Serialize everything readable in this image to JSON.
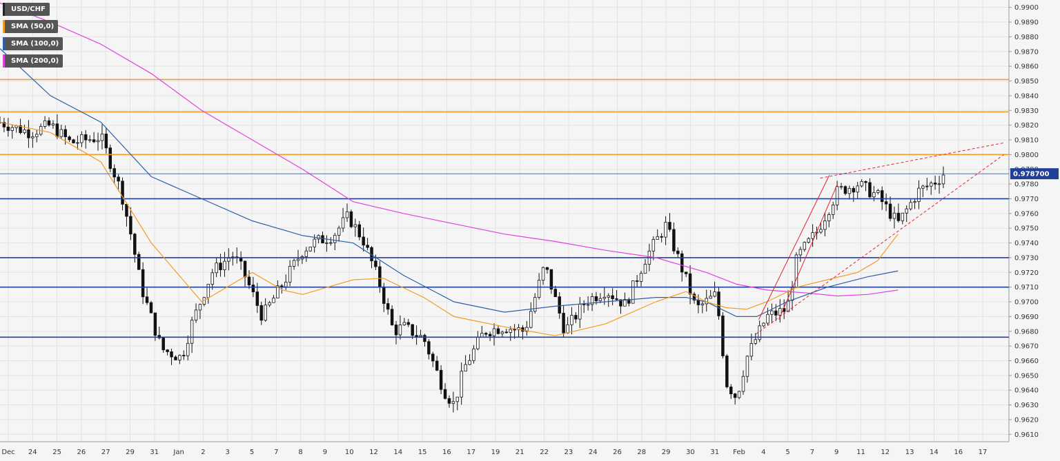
{
  "chart_data": {
    "type": "candlestick",
    "symbol": "USD/CHF",
    "legend": [
      {
        "label": "USD/CHF",
        "color": "#222222"
      },
      {
        "label": "SMA (50,0)",
        "color": "#f59a23"
      },
      {
        "label": "SMA (100,0)",
        "color": "#2c5fa8"
      },
      {
        "label": "SMA (200,0)",
        "color": "#e040e0"
      }
    ],
    "current_price_label": "0.978700",
    "current_price": 0.9787,
    "y_axis": {
      "min": 0.9605,
      "max": 0.9905,
      "ticks": [
        "0.9900",
        "0.9890",
        "0.9880",
        "0.9870",
        "0.9860",
        "0.9850",
        "0.9840",
        "0.9830",
        "0.9820",
        "0.9810",
        "0.9800",
        "0.9790",
        "0.9780",
        "0.9770",
        "0.9760",
        "0.9750",
        "0.9740",
        "0.9730",
        "0.9720",
        "0.9710",
        "0.9700",
        "0.9690",
        "0.9680",
        "0.9670",
        "0.9660",
        "0.9650",
        "0.9640",
        "0.9630",
        "0.9620",
        "0.9610"
      ]
    },
    "x_axis": {
      "labels": [
        "Dec",
        "24",
        "25",
        "26",
        "27",
        "29",
        "31",
        "Jan",
        "2",
        "3",
        "5",
        "7",
        "8",
        "9",
        "10",
        "12",
        "14",
        "15",
        "16",
        "17",
        "19",
        "21",
        "22",
        "23",
        "24",
        "26",
        "28",
        "29",
        "30",
        "31",
        "Feb",
        "4",
        "5",
        "7",
        "9",
        "11",
        "12",
        "13",
        "14",
        "16",
        "17"
      ]
    },
    "horizontal_levels": [
      {
        "price": 0.9851,
        "color": "#f59a23"
      },
      {
        "price": 0.9829,
        "color": "#f59a23"
      },
      {
        "price": 0.98,
        "color": "#f59a23"
      },
      {
        "price": 0.977,
        "color": "#1f3f99"
      },
      {
        "price": 0.973,
        "color": "#1f3f99"
      },
      {
        "price": 0.971,
        "color": "#1f3f99"
      },
      {
        "price": 0.9676,
        "color": "#1f3f99"
      }
    ],
    "sma_50": [
      [
        0,
        0.9822
      ],
      [
        0.05,
        0.9815
      ],
      [
        0.1,
        0.9795
      ],
      [
        0.15,
        0.974
      ],
      [
        0.2,
        0.97
      ],
      [
        0.25,
        0.972
      ],
      [
        0.28,
        0.9708
      ],
      [
        0.3,
        0.9705
      ],
      [
        0.35,
        0.9715
      ],
      [
        0.38,
        0.9716
      ],
      [
        0.42,
        0.9703
      ],
      [
        0.45,
        0.969
      ],
      [
        0.5,
        0.9683
      ],
      [
        0.55,
        0.9677
      ],
      [
        0.6,
        0.9685
      ],
      [
        0.65,
        0.97
      ],
      [
        0.68,
        0.9707
      ],
      [
        0.7,
        0.97
      ],
      [
        0.72,
        0.9696
      ],
      [
        0.74,
        0.9695
      ],
      [
        0.76,
        0.97
      ],
      [
        0.79,
        0.971
      ],
      [
        0.82,
        0.9715
      ],
      [
        0.85,
        0.972
      ],
      [
        0.87,
        0.9728
      ],
      [
        0.89,
        0.9746
      ]
    ],
    "sma_100": [
      [
        0,
        0.9872
      ],
      [
        0.05,
        0.984
      ],
      [
        0.1,
        0.9822
      ],
      [
        0.15,
        0.9785
      ],
      [
        0.2,
        0.977
      ],
      [
        0.25,
        0.9755
      ],
      [
        0.3,
        0.9745
      ],
      [
        0.35,
        0.974
      ],
      [
        0.4,
        0.9718
      ],
      [
        0.45,
        0.97
      ],
      [
        0.5,
        0.9693
      ],
      [
        0.55,
        0.9697
      ],
      [
        0.6,
        0.97
      ],
      [
        0.65,
        0.9703
      ],
      [
        0.68,
        0.9703
      ],
      [
        0.7,
        0.97
      ],
      [
        0.73,
        0.969
      ],
      [
        0.75,
        0.969
      ],
      [
        0.78,
        0.97
      ],
      [
        0.82,
        0.971
      ],
      [
        0.86,
        0.9717
      ],
      [
        0.89,
        0.9721
      ]
    ],
    "sma_200": [
      [
        0,
        0.9903
      ],
      [
        0.05,
        0.989
      ],
      [
        0.1,
        0.9875
      ],
      [
        0.15,
        0.9855
      ],
      [
        0.2,
        0.983
      ],
      [
        0.25,
        0.981
      ],
      [
        0.3,
        0.979
      ],
      [
        0.35,
        0.9768
      ],
      [
        0.4,
        0.976
      ],
      [
        0.45,
        0.9753
      ],
      [
        0.5,
        0.9746
      ],
      [
        0.55,
        0.9741
      ],
      [
        0.6,
        0.9735
      ],
      [
        0.65,
        0.973
      ],
      [
        0.7,
        0.972
      ],
      [
        0.73,
        0.9712
      ],
      [
        0.76,
        0.9708
      ],
      [
        0.8,
        0.9706
      ],
      [
        0.83,
        0.9704
      ],
      [
        0.86,
        0.9705
      ],
      [
        0.89,
        0.9708
      ]
    ],
    "annotations": {
      "wedge_upper": [
        [
          0.813,
          0.9784
        ],
        [
          0.995,
          0.9808
        ]
      ],
      "wedge_lower": [
        [
          0.749,
          0.9678
        ],
        [
          0.995,
          0.98
        ]
      ],
      "rise_lines": [
        [
          [
            0.752,
            0.9688
          ],
          [
            0.822,
            0.9786
          ]
        ],
        [
          [
            0.772,
            0.9688
          ],
          [
            0.83,
            0.978
          ]
        ]
      ]
    }
  }
}
